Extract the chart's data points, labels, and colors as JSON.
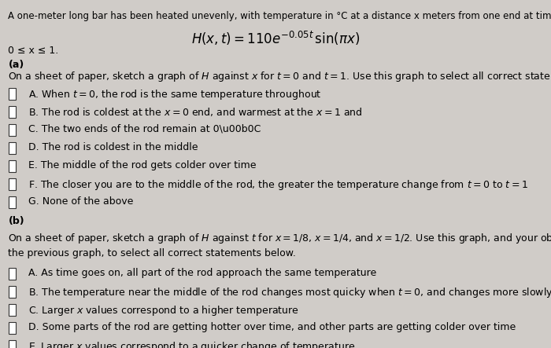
{
  "bg_color": "#d0ccc8",
  "text_color": "#000000",
  "title_line": "A one-meter long bar has been heated unevenly, with temperature in °C at a distance x meters from one end at time t given by",
  "domain": "0 ≤ x ≤ 1.",
  "part_a_label": "(a)",
  "part_b_label": "(b)",
  "font_size_body": 9.0,
  "font_size_formula": 12
}
